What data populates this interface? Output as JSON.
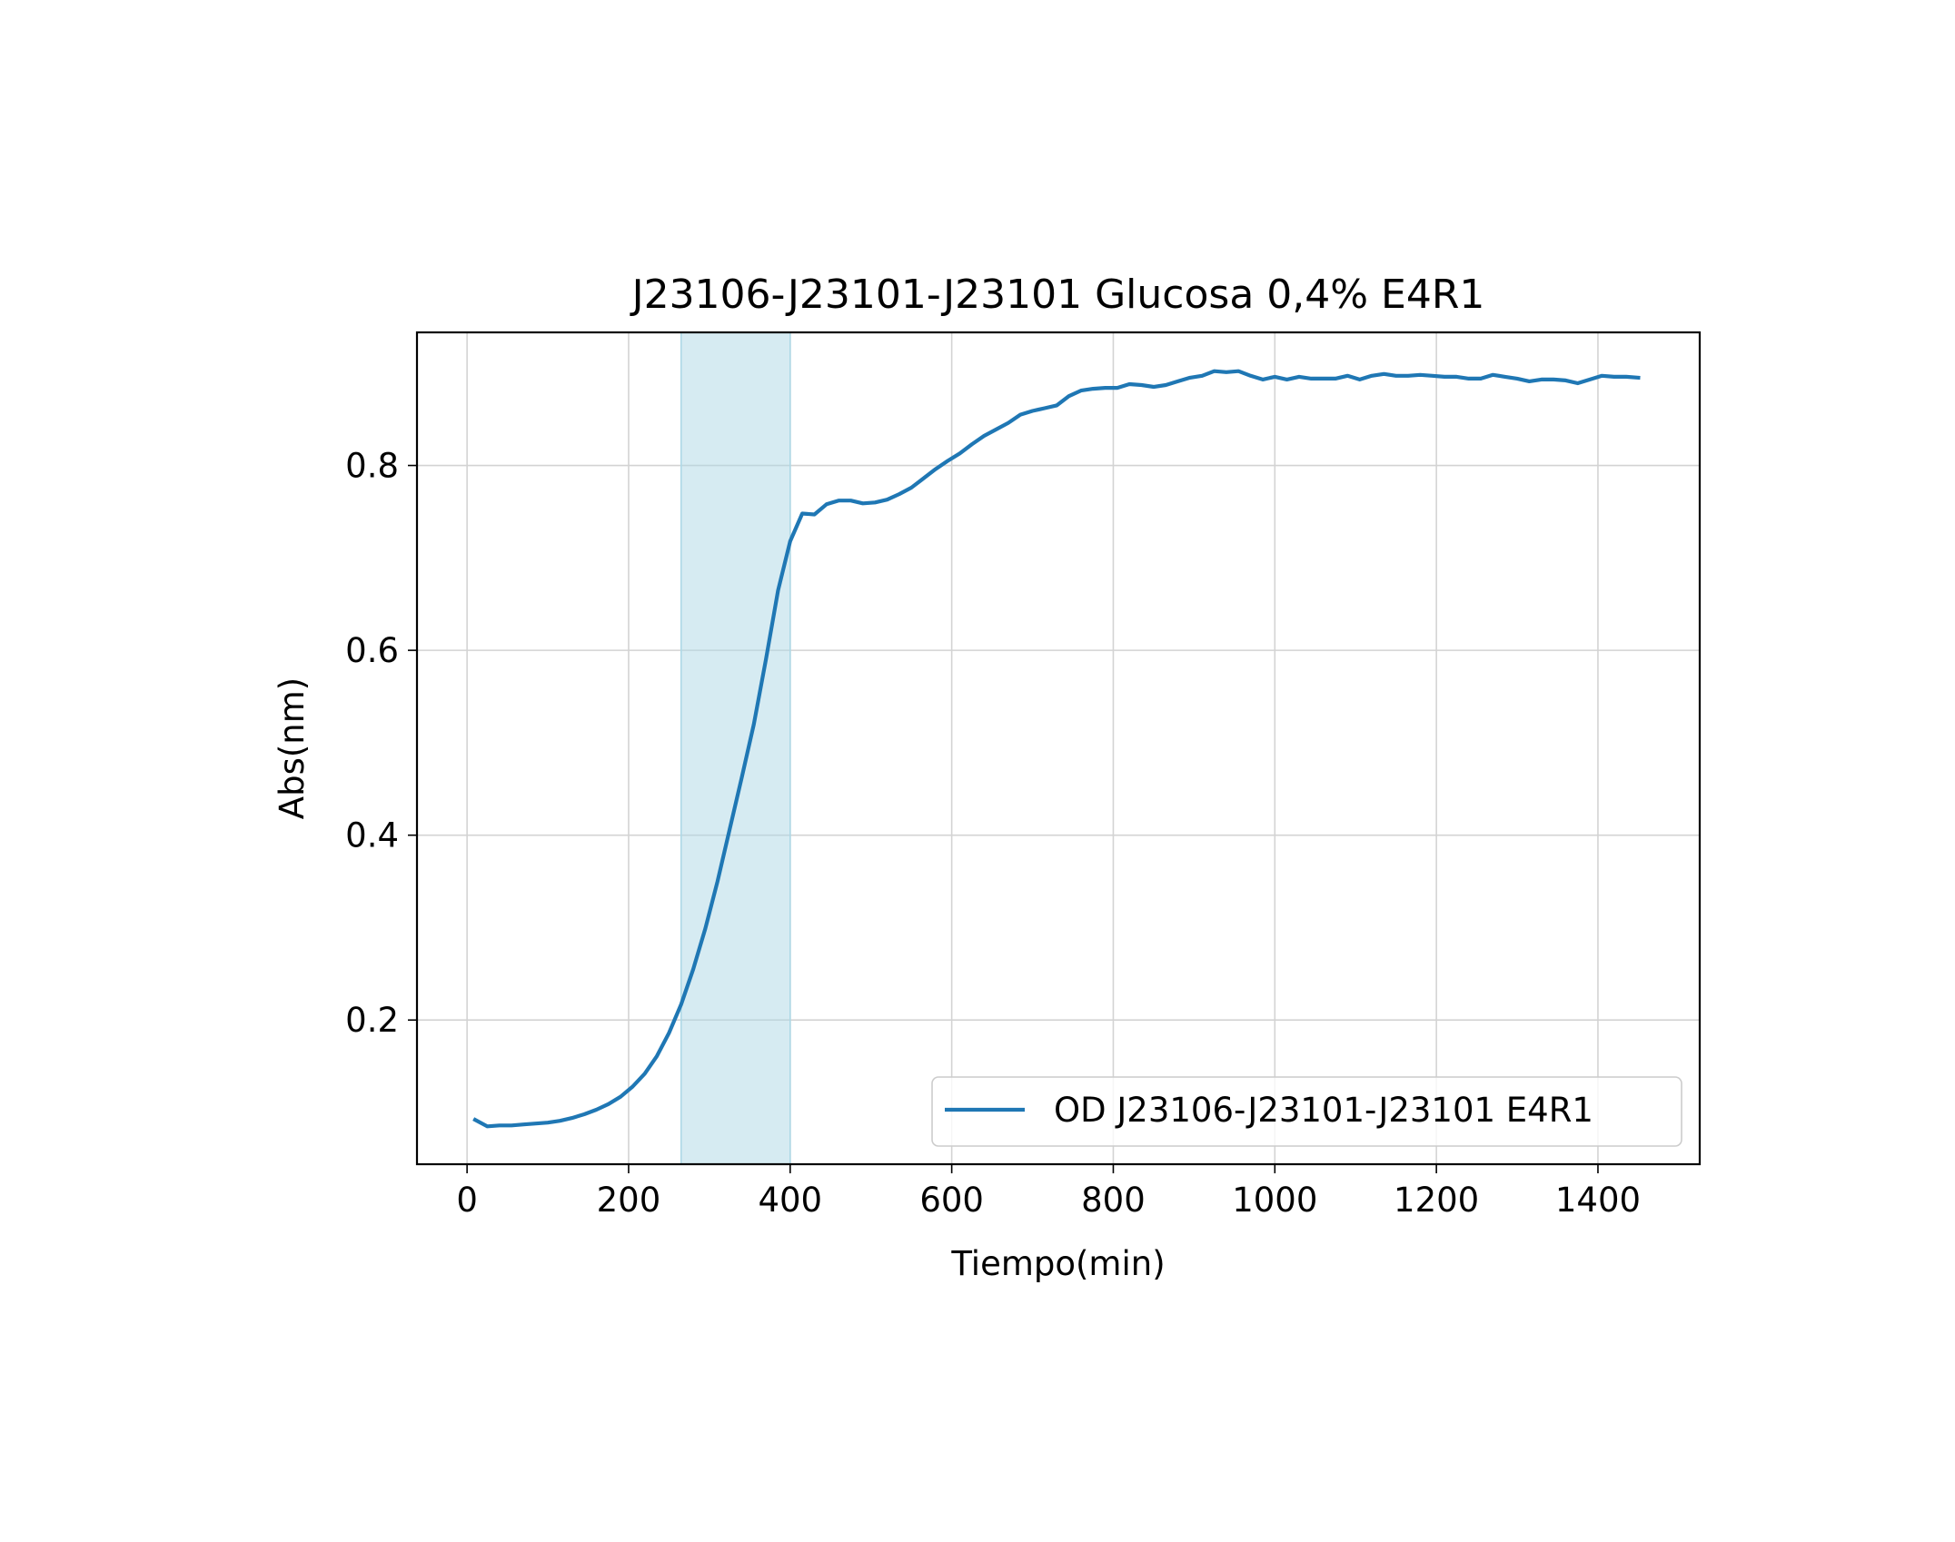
{
  "chart_data": {
    "type": "line",
    "title": "J23106-J23101-J23101 Glucosa 0,4% E4R1",
    "xlabel": "Tiempo(min)",
    "ylabel": "Abs(nm)",
    "xlim": [
      -62,
      1526
    ],
    "ylim": [
      0.044,
      0.944
    ],
    "xticks": [
      0,
      200,
      400,
      600,
      800,
      1000,
      1200,
      1400
    ],
    "xtick_labels": [
      "0",
      "200",
      "400",
      "600",
      "800",
      "1000",
      "1200",
      "1400"
    ],
    "yticks": [
      0.2,
      0.4,
      0.6,
      0.8
    ],
    "ytick_labels": [
      "0.2",
      "0.4",
      "0.6",
      "0.8"
    ],
    "grid": true,
    "legend": {
      "position": "lower-right",
      "entries": [
        "OD J23106-J23101-J23101 E4R1"
      ]
    },
    "highlight_band": {
      "x_start": 265,
      "x_end": 400,
      "color": "#add8e6"
    },
    "series": [
      {
        "name": "OD J23106-J23101-J23101 E4R1",
        "color": "#1f77b4",
        "x": [
          10,
          25,
          40,
          55,
          70,
          85,
          100,
          115,
          130,
          145,
          160,
          175,
          190,
          205,
          220,
          235,
          250,
          265,
          280,
          295,
          310,
          325,
          340,
          355,
          370,
          385,
          400,
          415,
          430,
          445,
          460,
          475,
          490,
          505,
          520,
          535,
          550,
          565,
          580,
          595,
          610,
          625,
          640,
          655,
          670,
          685,
          700,
          715,
          730,
          745,
          760,
          775,
          790,
          805,
          820,
          835,
          850,
          865,
          880,
          895,
          910,
          925,
          940,
          955,
          970,
          985,
          1000,
          1015,
          1030,
          1045,
          1060,
          1075,
          1090,
          1105,
          1120,
          1135,
          1150,
          1165,
          1180,
          1195,
          1210,
          1225,
          1240,
          1255,
          1270,
          1285,
          1300,
          1315,
          1330,
          1345,
          1360,
          1375,
          1390,
          1405,
          1420,
          1435,
          1450
        ],
        "y": [
          0.092,
          0.085,
          0.086,
          0.086,
          0.087,
          0.088,
          0.089,
          0.091,
          0.094,
          0.098,
          0.103,
          0.109,
          0.117,
          0.128,
          0.142,
          0.161,
          0.186,
          0.217,
          0.255,
          0.299,
          0.35,
          0.406,
          0.462,
          0.52,
          0.59,
          0.665,
          0.718,
          0.748,
          0.747,
          0.758,
          0.762,
          0.762,
          0.759,
          0.76,
          0.763,
          0.769,
          0.776,
          0.786,
          0.796,
          0.805,
          0.813,
          0.823,
          0.832,
          0.839,
          0.846,
          0.855,
          0.859,
          0.862,
          0.865,
          0.875,
          0.881,
          0.883,
          0.884,
          0.884,
          0.888,
          0.887,
          0.885,
          0.887,
          0.891,
          0.895,
          0.897,
          0.902,
          0.901,
          0.902,
          0.897,
          0.893,
          0.896,
          0.893,
          0.896,
          0.894,
          0.894,
          0.894,
          0.897,
          0.893,
          0.897,
          0.899,
          0.897,
          0.897,
          0.898,
          0.897,
          0.896,
          0.896,
          0.894,
          0.894,
          0.898,
          0.896,
          0.894,
          0.891,
          0.893,
          0.893,
          0.892,
          0.889,
          0.893,
          0.897,
          0.896,
          0.896,
          0.895
        ]
      }
    ]
  }
}
